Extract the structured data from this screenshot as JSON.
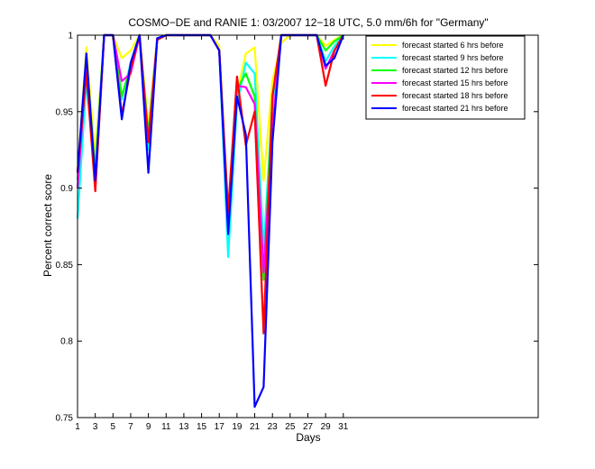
{
  "chart_data": {
    "type": "line",
    "title": "COSMO−DE and RANIE 1: 03/2007 12−18 UTC, 5.0 mm/6h for \"Germany\"",
    "xlabel": "Days",
    "ylabel": "Percent correct score",
    "xlim": [
      1,
      53
    ],
    "ylim": [
      0.75,
      1
    ],
    "xticks": [
      1,
      3,
      5,
      7,
      9,
      11,
      13,
      15,
      17,
      19,
      21,
      23,
      25,
      27,
      29,
      31
    ],
    "yticks": [
      0.75,
      0.8,
      0.85,
      0.9,
      0.95,
      1
    ],
    "ytick_labels": [
      "0.75",
      "0.8",
      "0.85",
      "0.9",
      "0.95",
      "1"
    ],
    "legend_position": "top-right",
    "x": [
      1,
      2,
      3,
      4,
      5,
      6,
      7,
      8,
      9,
      10,
      11,
      12,
      13,
      14,
      15,
      16,
      17,
      18,
      19,
      20,
      21,
      22,
      23,
      24,
      25,
      26,
      27,
      28,
      29,
      30,
      31
    ],
    "series": [
      {
        "name": "forecast started 6 hrs before",
        "color": "#ffff00",
        "values": [
          0.91,
          0.992,
          0.92,
          1,
          1,
          0.985,
          0.99,
          1,
          0.94,
          0.998,
          1,
          1,
          1,
          1,
          1,
          1,
          0.993,
          0.885,
          0.962,
          0.988,
          0.992,
          0.905,
          0.97,
          0.995,
          1,
          1,
          1,
          1,
          0.993,
          0.997,
          1
        ]
      },
      {
        "name": "forecast started 9 hrs before",
        "color": "#00ffff",
        "values": [
          0.88,
          0.97,
          0.91,
          1,
          1,
          0.958,
          0.982,
          1,
          0.925,
          0.998,
          1,
          1,
          1,
          1,
          1,
          1,
          0.99,
          0.855,
          0.955,
          0.982,
          0.975,
          0.86,
          0.955,
          1,
          1,
          1,
          1,
          1,
          0.983,
          0.993,
          1
        ]
      },
      {
        "name": "forecast started 12 hrs before",
        "color": "#00ff00",
        "values": [
          0.905,
          0.985,
          0.91,
          1,
          1,
          0.96,
          0.98,
          1,
          0.935,
          0.998,
          1,
          1,
          1,
          1,
          1,
          1,
          0.99,
          0.878,
          0.965,
          0.975,
          0.96,
          0.84,
          0.96,
          1,
          1,
          1,
          1,
          1,
          0.99,
          0.996,
          1
        ]
      },
      {
        "name": "forecast started 15 hrs before",
        "color": "#ff00ff",
        "values": [
          0.9,
          0.98,
          0.9,
          1,
          1,
          0.97,
          0.975,
          1,
          0.93,
          0.998,
          1,
          1,
          1,
          1,
          1,
          1,
          0.99,
          0.875,
          0.967,
          0.966,
          0.955,
          0.845,
          0.94,
          1,
          1,
          1,
          1,
          1,
          0.978,
          0.99,
          1
        ]
      },
      {
        "name": "forecast started 18 hrs before",
        "color": "#ff0000",
        "values": [
          0.91,
          0.975,
          0.898,
          1,
          1,
          0.948,
          0.978,
          1,
          0.93,
          0.997,
          1,
          1,
          1,
          1,
          1,
          1,
          0.99,
          0.885,
          0.973,
          0.928,
          0.95,
          0.805,
          0.96,
          1,
          1,
          1,
          1,
          1,
          0.967,
          0.99,
          1
        ]
      },
      {
        "name": "forecast started 21 hrs before",
        "color": "#0000ff",
        "values": [
          0.91,
          0.988,
          0.905,
          1,
          1,
          0.945,
          0.982,
          1,
          0.91,
          0.998,
          1,
          1,
          1,
          1,
          1,
          1,
          0.99,
          0.87,
          0.96,
          0.935,
          0.757,
          0.77,
          0.93,
          1,
          1,
          1,
          1,
          1,
          0.98,
          0.985,
          1
        ]
      }
    ]
  }
}
